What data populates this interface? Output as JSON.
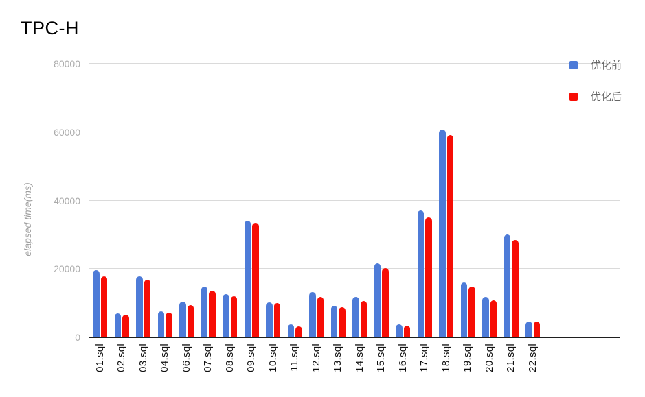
{
  "title": "TPC-H",
  "legend": {
    "items": [
      {
        "label": "优化前",
        "color": "#4d7bd8"
      },
      {
        "label": "优化后",
        "color": "#f70d05"
      }
    ]
  },
  "chart_data": {
    "type": "bar",
    "title": "TPC-H",
    "xlabel": "",
    "ylabel": "elapsed time(ms)",
    "ylim": [
      0,
      80000
    ],
    "yticks": [
      0,
      20000,
      40000,
      60000,
      80000
    ],
    "grid": true,
    "legend_position": "top-right",
    "categories": [
      "01.sql",
      "02.sql",
      "03.sql",
      "04.sql",
      "06.sql",
      "07.sql",
      "08.sql",
      "09.sql",
      "10.sql",
      "11.sql",
      "12.sql",
      "13.sql",
      "14.sql",
      "15.sql",
      "16.sql",
      "17.sql",
      "18.sql",
      "19.sql",
      "20.sql",
      "21.sql",
      "22.sql"
    ],
    "series": [
      {
        "name": "优化前",
        "color": "#4d7bd8",
        "values": [
          19600,
          7000,
          17800,
          7600,
          10500,
          14900,
          12700,
          34100,
          10200,
          3900,
          13300,
          9300,
          11800,
          21600,
          3900,
          37000,
          60800,
          16100,
          11800,
          30000,
          4700
        ]
      },
      {
        "name": "优化后",
        "color": "#f70d05",
        "values": [
          17900,
          6700,
          16900,
          7200,
          9400,
          13700,
          12000,
          33400,
          10100,
          3300,
          11800,
          8900,
          10700,
          20200,
          3400,
          35100,
          59100,
          14900,
          10900,
          28400,
          4600
        ]
      }
    ]
  },
  "colors": {
    "gridline": "#dadada",
    "baseline": "#1f1f1f",
    "title_text": "#000000",
    "axis_tick_text": "#ababab",
    "axis_title_text": "#9e9e9e",
    "category_text": "#111111",
    "legend_text": "#666666",
    "background": "#ffffff"
  }
}
